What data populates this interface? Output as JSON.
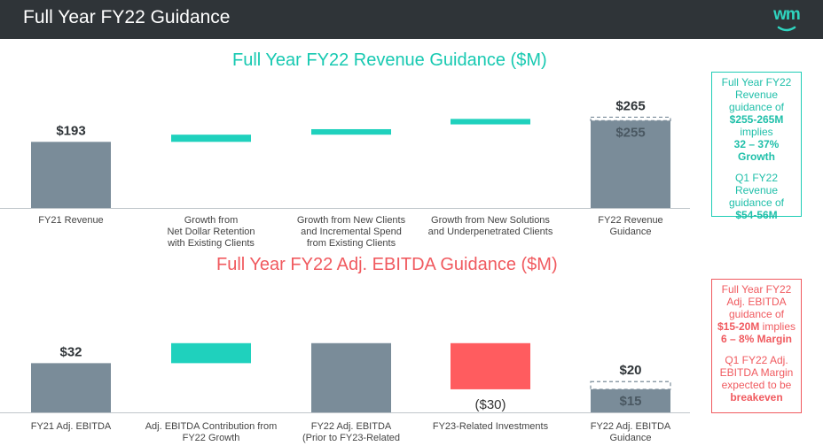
{
  "header": {
    "title": "Full Year FY22 Guidance",
    "logo_text": "wm"
  },
  "colors": {
    "header_bg": "#2f3438",
    "bar_gray": "#7a8c99",
    "teal": "#1fd1bd",
    "red": "#ff5c5f",
    "revenue_title": "#17c9b1",
    "ebitda_title": "#f05a5f"
  },
  "revenue_callout": {
    "l1": "Full Year FY22",
    "l2": "Revenue",
    "l3": "guidance of",
    "l4": "$255-265M",
    "l5": "implies",
    "l6": "32 – 37%",
    "l7": "Growth",
    "l8": "Q1 FY22 Revenue",
    "l9": "guidance of",
    "l10": "$54-56M"
  },
  "ebitda_callout": {
    "l1": "Full Year FY22",
    "l2": "Adj. EBITDA",
    "l3": "guidance of",
    "l4a": "$15-20M",
    "l4b": " implies",
    "l5": "6 – 8% Margin",
    "l6": "Q1 FY22 Adj.",
    "l7": "EBITDA Margin",
    "l8": "expected to be",
    "l9": "breakeven"
  },
  "chart_data": [
    {
      "type": "bar",
      "subtype": "waterfall",
      "title": "Full Year FY22 Revenue Guidance ($M)",
      "categories": [
        [
          "FY21 Revenue"
        ],
        [
          "Growth from",
          "Net Dollar Retention",
          "with Existing Clients"
        ],
        [
          "Growth from New Clients",
          "and Incremental Spend",
          "from Existing Clients"
        ],
        [
          "Growth from New Solutions",
          "and Underpenetrated Clients"
        ],
        [
          "FY22 Revenue",
          "Guidance"
        ]
      ],
      "bars": [
        {
          "kind": "total",
          "low": 0,
          "high": 193,
          "color": "gray",
          "label": "$193"
        },
        {
          "kind": "floating",
          "low": 193,
          "high": 214,
          "color": "teal",
          "label": ""
        },
        {
          "kind": "floating",
          "low": 214,
          "high": 230,
          "color": "teal",
          "label": ""
        },
        {
          "kind": "floating",
          "low": 244,
          "high": 260,
          "color": "teal",
          "label": ""
        },
        {
          "kind": "total",
          "low": 0,
          "high": 255,
          "high_dashed": 265,
          "color": "gray",
          "label": "$255",
          "label_dashed": "$265"
        }
      ],
      "ylim": [
        0,
        300
      ]
    },
    {
      "type": "bar",
      "subtype": "waterfall",
      "title": "Full Year FY22 Adj. EBITDA Guidance ($M)",
      "categories": [
        [
          "FY21 Adj. EBITDA"
        ],
        [
          "Adj. EBITDA Contribution from",
          "FY22 Growth"
        ],
        [
          "FY22 Adj. EBITDA",
          "(Prior to FY23-Related"
        ],
        [
          "FY23-Related Investments"
        ],
        [
          "FY22 Adj. EBITDA",
          "Guidance"
        ]
      ],
      "bars": [
        {
          "kind": "total",
          "low": 0,
          "high": 32,
          "color": "gray",
          "label": "$32"
        },
        {
          "kind": "floating",
          "low": 32,
          "high": 45,
          "color": "teal",
          "label": ""
        },
        {
          "kind": "total",
          "low": 0,
          "high": 45,
          "color": "gray",
          "label": ""
        },
        {
          "kind": "floating",
          "low": 15,
          "high": 45,
          "color": "red",
          "label": "($30)"
        },
        {
          "kind": "total",
          "low": 0,
          "high": 15,
          "high_dashed": 20,
          "color": "gray",
          "label": "$15",
          "label_dashed": "$20"
        }
      ],
      "ylim": [
        0,
        60
      ]
    }
  ]
}
